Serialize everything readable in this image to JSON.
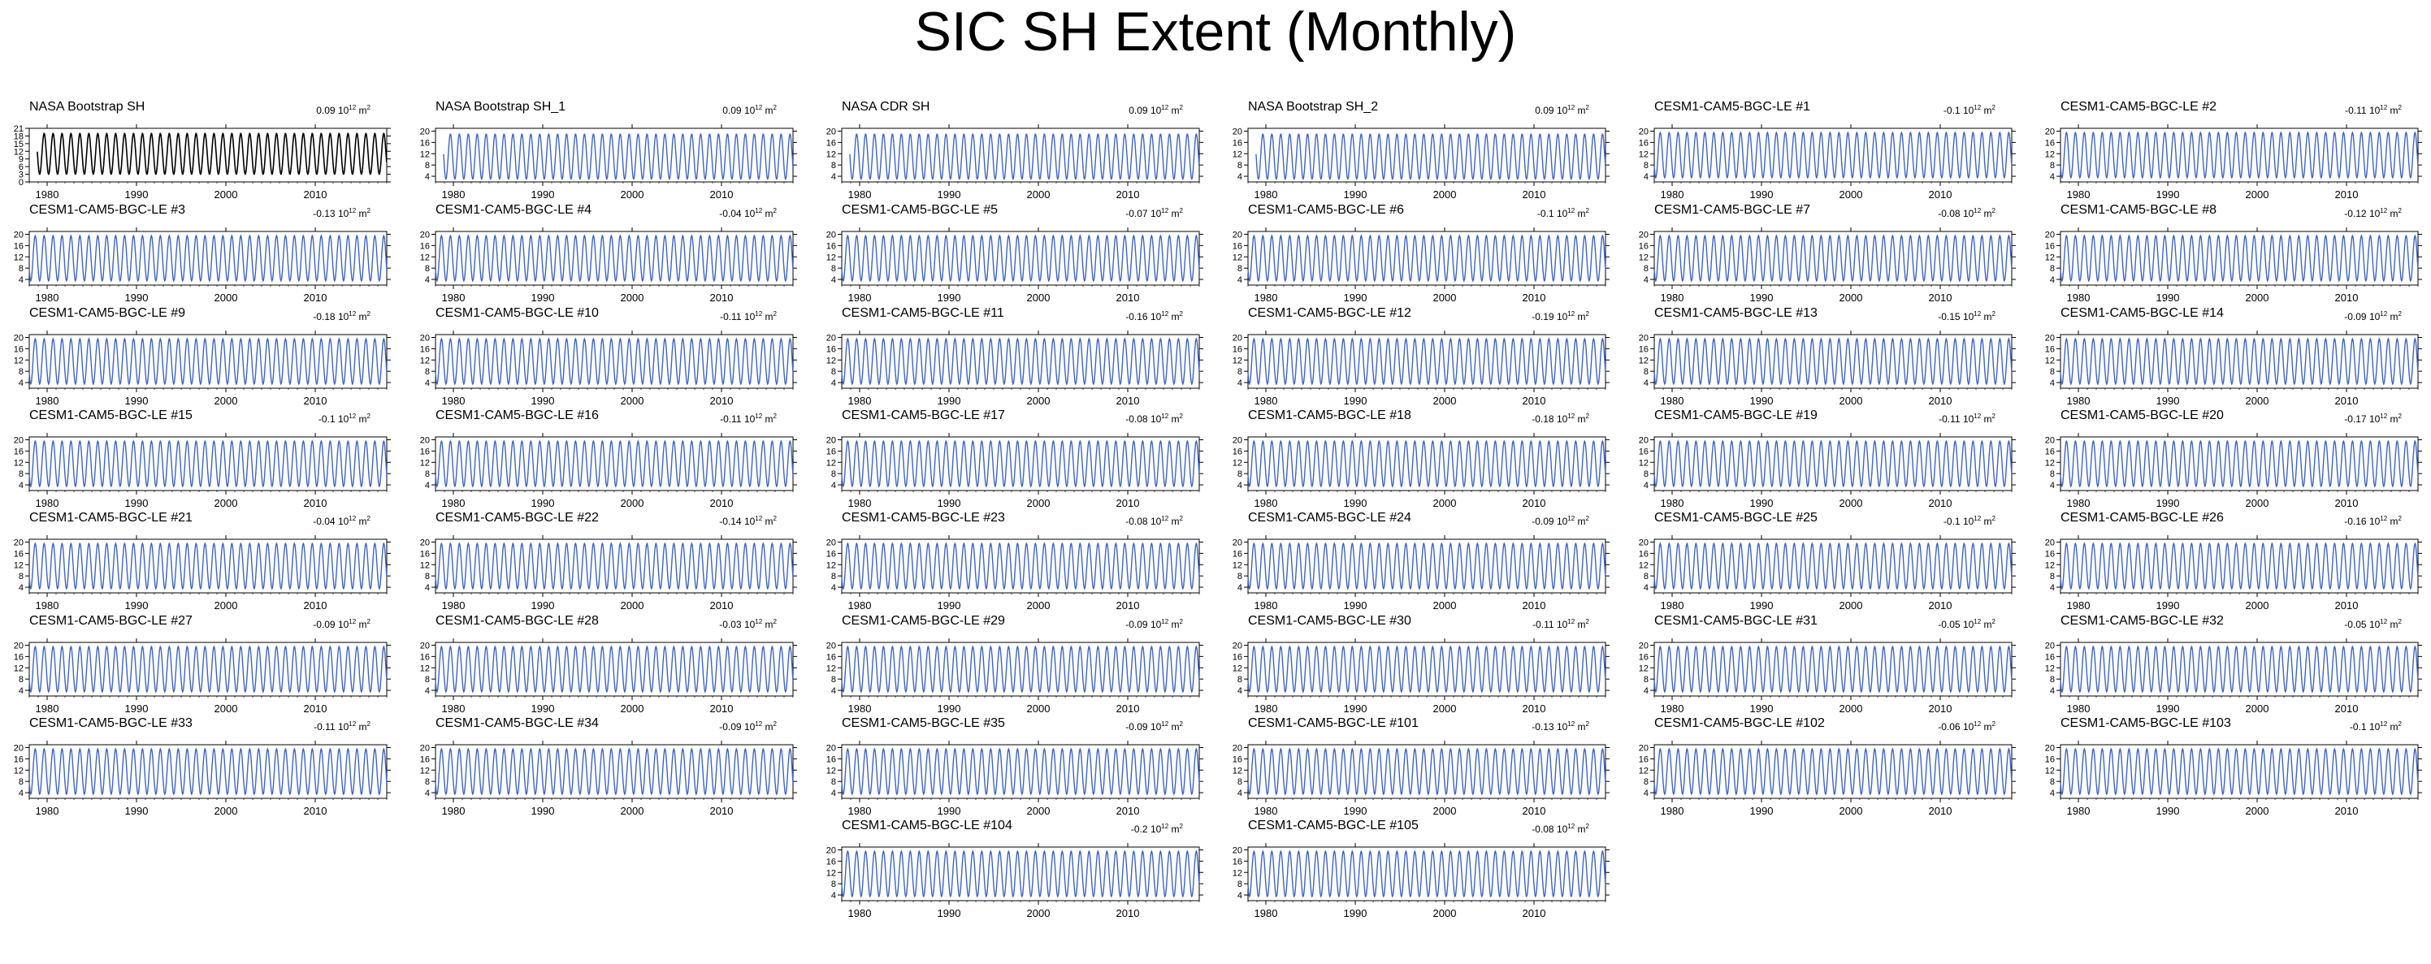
{
  "title": "SIC SH Extent (Monthly)",
  "colors": {
    "observation": "#000000",
    "model": "#3c64c8",
    "text": "#000000"
  },
  "chart_data": {
    "type": "line",
    "title": "SIC SH Extent (Monthly)",
    "trend_unit_base": "10",
    "trend_unit_exp": "12",
    "trend_unit_suffix": "m",
    "trend_unit_suffix_exp": "2",
    "x_ticks": [
      "1980",
      "1990",
      "2000",
      "2010"
    ],
    "xlim": [
      1978,
      2018
    ],
    "season": {
      "cycle_months": 12,
      "max_month": 9,
      "min_month": 2
    },
    "panels": [
      {
        "name": "NASA Bootstrap SH",
        "trend": "0.09",
        "kind": "observation",
        "yticks": [
          "21",
          "18",
          "15",
          "12",
          "9",
          "6",
          "3",
          "0"
        ],
        "ylim": [
          0,
          21
        ],
        "x_start": 1978.9,
        "x_end": 2018,
        "peak": 19,
        "trough": 3
      },
      {
        "name": "NASA Bootstrap SH_1",
        "trend": "0.09",
        "kind": "model",
        "yticks": [
          "20",
          "16",
          "12",
          "8",
          "4"
        ],
        "ylim": [
          2,
          21
        ],
        "x_start": 1978.9,
        "x_end": 2018,
        "peak": 19,
        "trough": 3
      },
      {
        "name": "NASA CDR SH",
        "trend": "0.09",
        "kind": "model",
        "yticks": [
          "20",
          "16",
          "12",
          "8",
          "4"
        ],
        "ylim": [
          2,
          21
        ],
        "x_start": 1978.9,
        "x_end": 2018,
        "peak": 19,
        "trough": 3
      },
      {
        "name": "NASA Bootstrap SH_2",
        "trend": "0.09",
        "kind": "model",
        "yticks": [
          "20",
          "16",
          "12",
          "8",
          "4"
        ],
        "ylim": [
          2,
          21
        ],
        "x_start": 1978.9,
        "x_end": 2018,
        "peak": 19,
        "trough": 3
      },
      {
        "name": "CESM1-CAM5-BGC-LE #1",
        "trend": "-0.1",
        "kind": "model",
        "yticks": [
          "20",
          "16",
          "12",
          "8",
          "4"
        ],
        "ylim": [
          2,
          21
        ],
        "x_start": 1978,
        "x_end": 2018,
        "peak": 19.5,
        "trough": 3.5
      },
      {
        "name": "CESM1-CAM5-BGC-LE #2",
        "trend": "-0.11",
        "kind": "model",
        "yticks": [
          "20",
          "16",
          "12",
          "8",
          "4"
        ],
        "ylim": [
          2,
          21
        ],
        "x_start": 1978,
        "x_end": 2018,
        "peak": 19.5,
        "trough": 3.5
      },
      {
        "name": "CESM1-CAM5-BGC-LE #3",
        "trend": "-0.13",
        "kind": "model",
        "yticks": [
          "20",
          "16",
          "12",
          "8",
          "4"
        ],
        "ylim": [
          2,
          21
        ],
        "x_start": 1978,
        "x_end": 2018,
        "peak": 19.5,
        "trough": 3.5
      },
      {
        "name": "CESM1-CAM5-BGC-LE #4",
        "trend": "-0.04",
        "kind": "model",
        "yticks": [
          "20",
          "16",
          "12",
          "8",
          "4"
        ],
        "ylim": [
          2,
          21
        ],
        "x_start": 1978,
        "x_end": 2018,
        "peak": 19.5,
        "trough": 3.5
      },
      {
        "name": "CESM1-CAM5-BGC-LE #5",
        "trend": "-0.07",
        "kind": "model",
        "yticks": [
          "20",
          "16",
          "12",
          "8",
          "4"
        ],
        "ylim": [
          2,
          21
        ],
        "x_start": 1978,
        "x_end": 2018,
        "peak": 19.5,
        "trough": 3.5
      },
      {
        "name": "CESM1-CAM5-BGC-LE #6",
        "trend": "-0.1",
        "kind": "model",
        "yticks": [
          "20",
          "16",
          "12",
          "8",
          "4"
        ],
        "ylim": [
          2,
          21
        ],
        "x_start": 1978,
        "x_end": 2018,
        "peak": 19.5,
        "trough": 3.5
      },
      {
        "name": "CESM1-CAM5-BGC-LE #7",
        "trend": "-0.08",
        "kind": "model",
        "yticks": [
          "20",
          "16",
          "12",
          "8",
          "4"
        ],
        "ylim": [
          2,
          21
        ],
        "x_start": 1978,
        "x_end": 2018,
        "peak": 19.5,
        "trough": 3.5
      },
      {
        "name": "CESM1-CAM5-BGC-LE #8",
        "trend": "-0.12",
        "kind": "model",
        "yticks": [
          "20",
          "16",
          "12",
          "8",
          "4"
        ],
        "ylim": [
          2,
          21
        ],
        "x_start": 1978,
        "x_end": 2018,
        "peak": 19.5,
        "trough": 3.5
      },
      {
        "name": "CESM1-CAM5-BGC-LE #9",
        "trend": "-0.18",
        "kind": "model",
        "yticks": [
          "20",
          "16",
          "12",
          "8",
          "4"
        ],
        "ylim": [
          2,
          21
        ],
        "x_start": 1978,
        "x_end": 2018,
        "peak": 19.5,
        "trough": 3.5
      },
      {
        "name": "CESM1-CAM5-BGC-LE #10",
        "trend": "-0.11",
        "kind": "model",
        "yticks": [
          "20",
          "16",
          "12",
          "8",
          "4"
        ],
        "ylim": [
          2,
          21
        ],
        "x_start": 1978,
        "x_end": 2018,
        "peak": 19.5,
        "trough": 3.5
      },
      {
        "name": "CESM1-CAM5-BGC-LE #11",
        "trend": "-0.16",
        "kind": "model",
        "yticks": [
          "20",
          "16",
          "12",
          "8",
          "4"
        ],
        "ylim": [
          2,
          21
        ],
        "x_start": 1978,
        "x_end": 2018,
        "peak": 19.5,
        "trough": 3.5
      },
      {
        "name": "CESM1-CAM5-BGC-LE #12",
        "trend": "-0.19",
        "kind": "model",
        "yticks": [
          "20",
          "16",
          "12",
          "8",
          "4"
        ],
        "ylim": [
          2,
          21
        ],
        "x_start": 1978,
        "x_end": 2018,
        "peak": 19.5,
        "trough": 3.5
      },
      {
        "name": "CESM1-CAM5-BGC-LE #13",
        "trend": "-0.15",
        "kind": "model",
        "yticks": [
          "20",
          "16",
          "12",
          "8",
          "4"
        ],
        "ylim": [
          2,
          21
        ],
        "x_start": 1978,
        "x_end": 2018,
        "peak": 19.5,
        "trough": 3.5
      },
      {
        "name": "CESM1-CAM5-BGC-LE #14",
        "trend": "-0.09",
        "kind": "model",
        "yticks": [
          "20",
          "16",
          "12",
          "8",
          "4"
        ],
        "ylim": [
          2,
          21
        ],
        "x_start": 1978,
        "x_end": 2018,
        "peak": 19.5,
        "trough": 3.5
      },
      {
        "name": "CESM1-CAM5-BGC-LE #15",
        "trend": "-0.1",
        "kind": "model",
        "yticks": [
          "20",
          "16",
          "12",
          "8",
          "4"
        ],
        "ylim": [
          2,
          21
        ],
        "x_start": 1978,
        "x_end": 2018,
        "peak": 19.5,
        "trough": 3.5
      },
      {
        "name": "CESM1-CAM5-BGC-LE #16",
        "trend": "-0.11",
        "kind": "model",
        "yticks": [
          "20",
          "16",
          "12",
          "8",
          "4"
        ],
        "ylim": [
          2,
          21
        ],
        "x_start": 1978,
        "x_end": 2018,
        "peak": 19.5,
        "trough": 3.5
      },
      {
        "name": "CESM1-CAM5-BGC-LE #17",
        "trend": "-0.08",
        "kind": "model",
        "yticks": [
          "20",
          "16",
          "12",
          "8",
          "4"
        ],
        "ylim": [
          2,
          21
        ],
        "x_start": 1978,
        "x_end": 2018,
        "peak": 19.5,
        "trough": 3.5
      },
      {
        "name": "CESM1-CAM5-BGC-LE #18",
        "trend": "-0.18",
        "kind": "model",
        "yticks": [
          "20",
          "16",
          "12",
          "8",
          "4"
        ],
        "ylim": [
          2,
          21
        ],
        "x_start": 1978,
        "x_end": 2018,
        "peak": 19.5,
        "trough": 3.5
      },
      {
        "name": "CESM1-CAM5-BGC-LE #19",
        "trend": "-0.11",
        "kind": "model",
        "yticks": [
          "20",
          "16",
          "12",
          "8",
          "4"
        ],
        "ylim": [
          2,
          21
        ],
        "x_start": 1978,
        "x_end": 2018,
        "peak": 19.5,
        "trough": 3.5
      },
      {
        "name": "CESM1-CAM5-BGC-LE #20",
        "trend": "-0.17",
        "kind": "model",
        "yticks": [
          "20",
          "16",
          "12",
          "8",
          "4"
        ],
        "ylim": [
          2,
          21
        ],
        "x_start": 1978,
        "x_end": 2018,
        "peak": 19.5,
        "trough": 3.5
      },
      {
        "name": "CESM1-CAM5-BGC-LE #21",
        "trend": "-0.04",
        "kind": "model",
        "yticks": [
          "20",
          "16",
          "12",
          "8",
          "4"
        ],
        "ylim": [
          2,
          21
        ],
        "x_start": 1978,
        "x_end": 2018,
        "peak": 19.5,
        "trough": 3.5
      },
      {
        "name": "CESM1-CAM5-BGC-LE #22",
        "trend": "-0.14",
        "kind": "model",
        "yticks": [
          "20",
          "16",
          "12",
          "8",
          "4"
        ],
        "ylim": [
          2,
          21
        ],
        "x_start": 1978,
        "x_end": 2018,
        "peak": 19.5,
        "trough": 3.5
      },
      {
        "name": "CESM1-CAM5-BGC-LE #23",
        "trend": "-0.08",
        "kind": "model",
        "yticks": [
          "20",
          "16",
          "12",
          "8",
          "4"
        ],
        "ylim": [
          2,
          21
        ],
        "x_start": 1978,
        "x_end": 2018,
        "peak": 19.5,
        "trough": 3.5
      },
      {
        "name": "CESM1-CAM5-BGC-LE #24",
        "trend": "-0.09",
        "kind": "model",
        "yticks": [
          "20",
          "16",
          "12",
          "8",
          "4"
        ],
        "ylim": [
          2,
          21
        ],
        "x_start": 1978,
        "x_end": 2018,
        "peak": 19.5,
        "trough": 3.5
      },
      {
        "name": "CESM1-CAM5-BGC-LE #25",
        "trend": "-0.1",
        "kind": "model",
        "yticks": [
          "20",
          "16",
          "12",
          "8",
          "4"
        ],
        "ylim": [
          2,
          21
        ],
        "x_start": 1978,
        "x_end": 2018,
        "peak": 19.5,
        "trough": 3.5
      },
      {
        "name": "CESM1-CAM5-BGC-LE #26",
        "trend": "-0.16",
        "kind": "model",
        "yticks": [
          "20",
          "16",
          "12",
          "8",
          "4"
        ],
        "ylim": [
          2,
          21
        ],
        "x_start": 1978,
        "x_end": 2018,
        "peak": 19.5,
        "trough": 3.5
      },
      {
        "name": "CESM1-CAM5-BGC-LE #27",
        "trend": "-0.09",
        "kind": "model",
        "yticks": [
          "20",
          "16",
          "12",
          "8",
          "4"
        ],
        "ylim": [
          2,
          21
        ],
        "x_start": 1978,
        "x_end": 2018,
        "peak": 19.5,
        "trough": 3.5
      },
      {
        "name": "CESM1-CAM5-BGC-LE #28",
        "trend": "-0.03",
        "kind": "model",
        "yticks": [
          "20",
          "16",
          "12",
          "8",
          "4"
        ],
        "ylim": [
          2,
          21
        ],
        "x_start": 1978,
        "x_end": 2018,
        "peak": 19.5,
        "trough": 3.5
      },
      {
        "name": "CESM1-CAM5-BGC-LE #29",
        "trend": "-0.09",
        "kind": "model",
        "yticks": [
          "20",
          "16",
          "12",
          "8",
          "4"
        ],
        "ylim": [
          2,
          21
        ],
        "x_start": 1978,
        "x_end": 2018,
        "peak": 19.5,
        "trough": 3.5
      },
      {
        "name": "CESM1-CAM5-BGC-LE #30",
        "trend": "-0.11",
        "kind": "model",
        "yticks": [
          "20",
          "16",
          "12",
          "8",
          "4"
        ],
        "ylim": [
          2,
          21
        ],
        "x_start": 1978,
        "x_end": 2018,
        "peak": 19.5,
        "trough": 3.5
      },
      {
        "name": "CESM1-CAM5-BGC-LE #31",
        "trend": "-0.05",
        "kind": "model",
        "yticks": [
          "20",
          "16",
          "12",
          "8",
          "4"
        ],
        "ylim": [
          2,
          21
        ],
        "x_start": 1978,
        "x_end": 2018,
        "peak": 19.5,
        "trough": 3.5
      },
      {
        "name": "CESM1-CAM5-BGC-LE #32",
        "trend": "-0.05",
        "kind": "model",
        "yticks": [
          "20",
          "16",
          "12",
          "8",
          "4"
        ],
        "ylim": [
          2,
          21
        ],
        "x_start": 1978,
        "x_end": 2018,
        "peak": 19.5,
        "trough": 3.5
      },
      {
        "name": "CESM1-CAM5-BGC-LE #33",
        "trend": "-0.11",
        "kind": "model",
        "yticks": [
          "20",
          "16",
          "12",
          "8",
          "4"
        ],
        "ylim": [
          2,
          21
        ],
        "x_start": 1978,
        "x_end": 2018,
        "peak": 19.5,
        "trough": 3.5
      },
      {
        "name": "CESM1-CAM5-BGC-LE #34",
        "trend": "-0.09",
        "kind": "model",
        "yticks": [
          "20",
          "16",
          "12",
          "8",
          "4"
        ],
        "ylim": [
          2,
          21
        ],
        "x_start": 1978,
        "x_end": 2018,
        "peak": 19.5,
        "trough": 3.5
      },
      {
        "name": "CESM1-CAM5-BGC-LE #35",
        "trend": "-0.09",
        "kind": "model",
        "yticks": [
          "20",
          "16",
          "12",
          "8",
          "4"
        ],
        "ylim": [
          2,
          21
        ],
        "x_start": 1978,
        "x_end": 2018,
        "peak": 19.5,
        "trough": 3.5
      },
      {
        "name": "CESM1-CAM5-BGC-LE #101",
        "trend": "-0.13",
        "kind": "model",
        "yticks": [
          "20",
          "16",
          "12",
          "8",
          "4"
        ],
        "ylim": [
          2,
          21
        ],
        "x_start": 1978,
        "x_end": 2018,
        "peak": 19.5,
        "trough": 3.5
      },
      {
        "name": "CESM1-CAM5-BGC-LE #102",
        "trend": "-0.06",
        "kind": "model",
        "yticks": [
          "20",
          "16",
          "12",
          "8",
          "4"
        ],
        "ylim": [
          2,
          21
        ],
        "x_start": 1978,
        "x_end": 2018,
        "peak": 19.5,
        "trough": 3.5
      },
      {
        "name": "CESM1-CAM5-BGC-LE #103",
        "trend": "-0.1",
        "kind": "model",
        "yticks": [
          "20",
          "16",
          "12",
          "8",
          "4"
        ],
        "ylim": [
          2,
          21
        ],
        "x_start": 1978,
        "x_end": 2018,
        "peak": 19.5,
        "trough": 3.5
      },
      {
        "name": "CESM1-CAM5-BGC-LE #104",
        "trend": "-0.2",
        "kind": "model",
        "yticks": [
          "20",
          "16",
          "12",
          "8",
          "4"
        ],
        "ylim": [
          2,
          21
        ],
        "x_start": 1978,
        "x_end": 2018,
        "peak": 19.5,
        "trough": 3.5
      },
      {
        "name": "CESM1-CAM5-BGC-LE #105",
        "trend": "-0.08",
        "kind": "model",
        "yticks": [
          "20",
          "16",
          "12",
          "8",
          "4"
        ],
        "ylim": [
          2,
          21
        ],
        "x_start": 1978,
        "x_end": 2018,
        "peak": 19.5,
        "trough": 3.5
      }
    ]
  }
}
